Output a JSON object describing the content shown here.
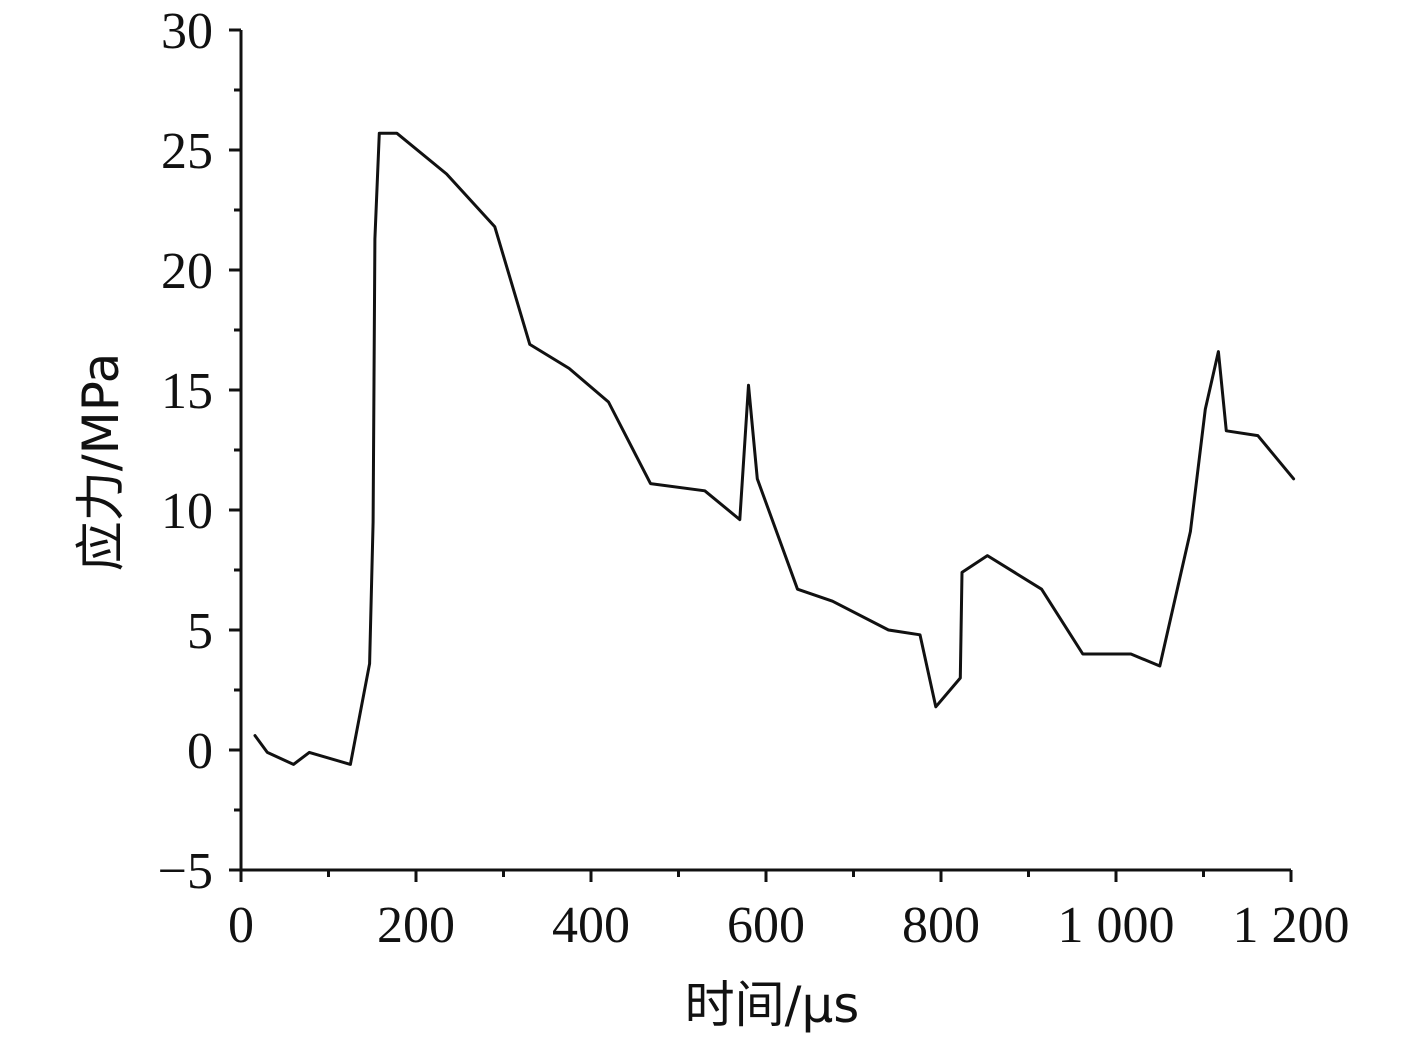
{
  "chart_data": {
    "type": "line",
    "title": "",
    "xlabel": "时间/μs",
    "ylabel": "应力/MPa",
    "xlim": [
      0,
      1200
    ],
    "ylim": [
      -5,
      30
    ],
    "x_ticks": [
      {
        "value": 0,
        "label": "0"
      },
      {
        "value": 200,
        "label": "200"
      },
      {
        "value": 400,
        "label": "400"
      },
      {
        "value": 600,
        "label": "600"
      },
      {
        "value": 800,
        "label": "800"
      },
      {
        "value": 1000,
        "label": "1 000"
      },
      {
        "value": 1200,
        "label": "1 200"
      }
    ],
    "x_minor_ticks": [
      100,
      300,
      500,
      700,
      900,
      1100
    ],
    "y_ticks": [
      {
        "value": -5,
        "label": "−5"
      },
      {
        "value": 0,
        "label": "0"
      },
      {
        "value": 5,
        "label": "5"
      },
      {
        "value": 10,
        "label": "10"
      },
      {
        "value": 15,
        "label": "15"
      },
      {
        "value": 20,
        "label": "20"
      },
      {
        "value": 25,
        "label": "25"
      },
      {
        "value": 30,
        "label": "30"
      }
    ],
    "y_minor_ticks": [
      -2.5,
      2.5,
      7.5,
      12.5,
      17.5,
      22.5,
      27.5
    ],
    "grid": false,
    "series": [
      {
        "color": "#111111",
        "x": [
          16,
          30,
          60,
          78,
          125,
          147,
          151,
          153,
          158,
          178,
          235,
          290,
          330,
          375,
          420,
          468,
          530,
          570,
          580,
          590,
          636,
          676,
          740,
          776,
          794,
          822,
          824,
          853,
          915,
          962,
          1017,
          1050,
          1085,
          1102,
          1117,
          1126,
          1162,
          1203
        ],
        "y": [
          0.6,
          -0.1,
          -0.6,
          -0.1,
          -0.6,
          3.6,
          9.5,
          21.3,
          25.7,
          25.7,
          24.0,
          21.8,
          16.9,
          15.9,
          14.5,
          11.1,
          10.8,
          9.6,
          15.2,
          11.3,
          6.7,
          6.2,
          5.0,
          4.8,
          1.8,
          3.0,
          7.4,
          8.1,
          6.7,
          4.0,
          4.0,
          3.5,
          9.1,
          14.2,
          16.6,
          13.3,
          13.1,
          11.3
        ]
      }
    ]
  }
}
